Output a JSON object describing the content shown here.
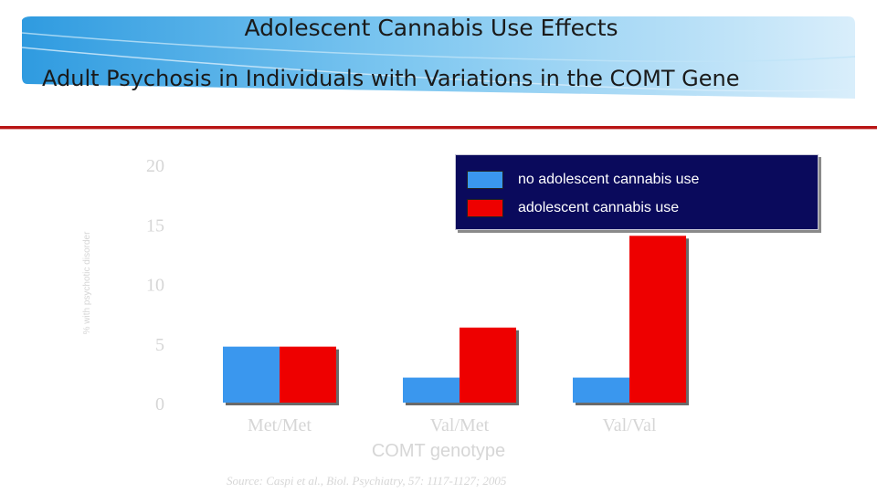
{
  "slide": {
    "title": "Adolescent Cannabis Use Effects",
    "subtitle": "Adult Psychosis in Individuals with Variations in the COMT Gene",
    "source": "Source: Caspi et al., Biol. Psychiatry, 57: 1117-1127; 2005"
  },
  "colors": {
    "series_no_use": "#3a97ee",
    "series_use": "#ee0000",
    "legend_bg": "#0a0a5c",
    "faded_text": "#d6d6d6"
  },
  "chart_data": {
    "type": "bar",
    "title": "",
    "xlabel": "COMT genotype",
    "ylabel": "% with psychotic disorder",
    "categories": [
      "Met/Met",
      "Val/Met",
      "Val/Val"
    ],
    "ylim": [
      0,
      20
    ],
    "yticks": [
      0,
      5,
      10,
      15,
      20
    ],
    "series": [
      {
        "name": "no adolescent cannabis use",
        "values": [
          4.7,
          2.1,
          2.1
        ]
      },
      {
        "name": "adolescent cannabis use",
        "values": [
          4.7,
          6.3,
          14.0
        ]
      }
    ],
    "legend_position": "top-right"
  }
}
